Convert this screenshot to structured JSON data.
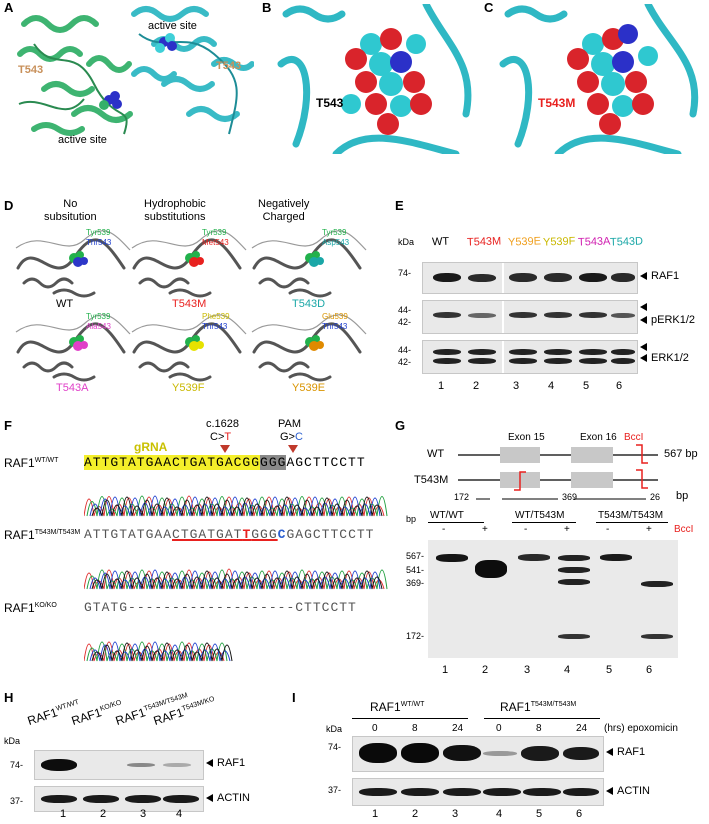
{
  "panel_labels": {
    "a": "A",
    "b": "B",
    "c": "C",
    "d": "D",
    "e": "E",
    "f": "F",
    "g": "G",
    "h": "H",
    "i": "I"
  },
  "panel_a": {
    "active_site_top": "active site",
    "active_site_bottom": "active site",
    "t543_left": "T543",
    "t543_right": "T543"
  },
  "panel_b": {
    "residue": "T543"
  },
  "panel_c": {
    "residue": "T543M"
  },
  "panel_d": {
    "headers": [
      "No\nsubsitution",
      "Hydrophobic\nsubstitutions",
      "Negatively\nCharged"
    ],
    "structures": [
      {
        "name": "WT",
        "a": "Tyr539",
        "b": "Thr543",
        "name_color": "#000000",
        "a_color": "#22b14c",
        "b_color": "#1f3fd0",
        "site_color": "#2d37c8"
      },
      {
        "name": "T543M",
        "a": "Tyr539",
        "b": "Met543",
        "name_color": "#e8211f",
        "a_color": "#22b14c",
        "b_color": "#e8211f",
        "site_color": "#e8211f"
      },
      {
        "name": "T543D",
        "a": "Tyr539",
        "b": "Asp543",
        "name_color": "#1aa7a7",
        "a_color": "#22b14c",
        "b_color": "#1aa7a7",
        "site_color": "#1aa7a7"
      },
      {
        "name": "T543A",
        "a": "Tyr539",
        "b": "Ala543",
        "name_color": "#e040c8",
        "a_color": "#22b14c",
        "b_color": "#e040c8",
        "site_color": "#e040c8"
      },
      {
        "name": "Y539F",
        "a": "Phe539",
        "b": "Thr543",
        "name_color": "#c9b800",
        "a_color": "#c9b800",
        "b_color": "#1f3fd0",
        "site_color": "#e6e200"
      },
      {
        "name": "Y539E",
        "a": "Glu539",
        "b": "Thr543",
        "name_color": "#d99400",
        "a_color": "#d99400",
        "b_color": "#1f3fd0",
        "site_color": "#e08a00"
      }
    ]
  },
  "panel_e": {
    "kda": "kDa",
    "lanes": [
      {
        "label": "WT",
        "color": "#000000"
      },
      {
        "label": "T543M",
        "color": "#e8211f"
      },
      {
        "label": "Y539E",
        "color": "#f0a020"
      },
      {
        "label": "Y539F",
        "color": "#c9b800"
      },
      {
        "label": "T543A",
        "color": "#d020b0"
      },
      {
        "label": "T543D",
        "color": "#1aa7a7"
      }
    ],
    "markers": {
      "m74": "74-",
      "m44a": "44-",
      "m42a": "42-",
      "m44b": "44-",
      "m42b": "42-"
    },
    "blots": {
      "raf1": "RAF1",
      "perk": "pERK1/2",
      "erk": "ERK1/2"
    },
    "lane_numbers": [
      "1",
      "2",
      "3",
      "4",
      "5",
      "6"
    ]
  },
  "panel_f": {
    "gRNA": "gRNA",
    "c1628": "c.1628",
    "pam": "PAM",
    "c_to": "C>",
    "c_to_t": "T",
    "g_to": "G>",
    "g_to_c": "C",
    "wt_label": "RAF1",
    "wt_sup": "WT/WT",
    "wt_seq_hl": "ATTGTATGAACTGATGACGG",
    "wt_seq_pam": "GGG",
    "wt_seq_rest": "AGCTTCCTT",
    "mut_label": "RAF1",
    "mut_sup": "T543M/T543M",
    "mut_seq_a": "ATTGTATGAA",
    "mut_seq_b": "CTGATGAT",
    "mut_seq_t": "T",
    "mut_seq_c": "GGG",
    "mut_seq_cc": "C",
    "mut_seq_end": "GAGCTTCCTT",
    "ko_label": "RAF1",
    "ko_sup": "KO/KO",
    "ko_seq_a": "GTATG",
    "ko_seq_dash": "-------------------",
    "ko_seq_b": "CTTCCTT"
  },
  "panel_g": {
    "wt": "WT",
    "t543m": "T543M",
    "exon15": "Exon 15",
    "exon16": "Exon 16",
    "bcci": "BccI",
    "size_567": "567 bp",
    "sizes": [
      "172",
      "369",
      "26"
    ],
    "bp": "bp",
    "bp_top": "bp",
    "gel_groups": [
      "WT/WT",
      "WT/T543M",
      "T543M/T543M"
    ],
    "minus": "-",
    "plus": "+",
    "bcci_top": "BccI",
    "markers": [
      "567-",
      "541-",
      "369-",
      "172-"
    ],
    "lane_numbers": [
      "1",
      "2",
      "3",
      "4",
      "5",
      "6"
    ]
  },
  "panel_h": {
    "kda": "kDa",
    "lanes": [
      {
        "name": "RAF1",
        "sup": "WT/WT"
      },
      {
        "name": "RAF1",
        "sup": "KO/KO"
      },
      {
        "name": "RAF1",
        "sup": "T543M/T543M"
      },
      {
        "name": "RAF1",
        "sup": "T543M/KO"
      }
    ],
    "m74": "74-",
    "m37": "37-",
    "raf1": "RAF1",
    "actin": "ACTIN",
    "lane_numbers": [
      "1",
      "2",
      "3",
      "4"
    ]
  },
  "panel_i": {
    "kda": "kDa",
    "group1": "RAF1",
    "group1_sup": "WT/WT",
    "group2": "RAF1",
    "group2_sup": "T543M/T543M",
    "times": [
      "0",
      "8",
      "24",
      "0",
      "8",
      "24"
    ],
    "hrs": "(hrs) epoxomicin",
    "m74": "74-",
    "m37": "37-",
    "raf1": "RAF1",
    "actin": "ACTIN",
    "lane_numbers": [
      "1",
      "2",
      "3",
      "4",
      "5",
      "6"
    ]
  },
  "colors": {
    "teal": "#2fb8c4",
    "green": "#34b06a",
    "sphere_red": "#d9242b",
    "sphere_blue": "#2b30c8",
    "gRNA_yellow": "#f4ef2a",
    "red": "#e8211f"
  }
}
